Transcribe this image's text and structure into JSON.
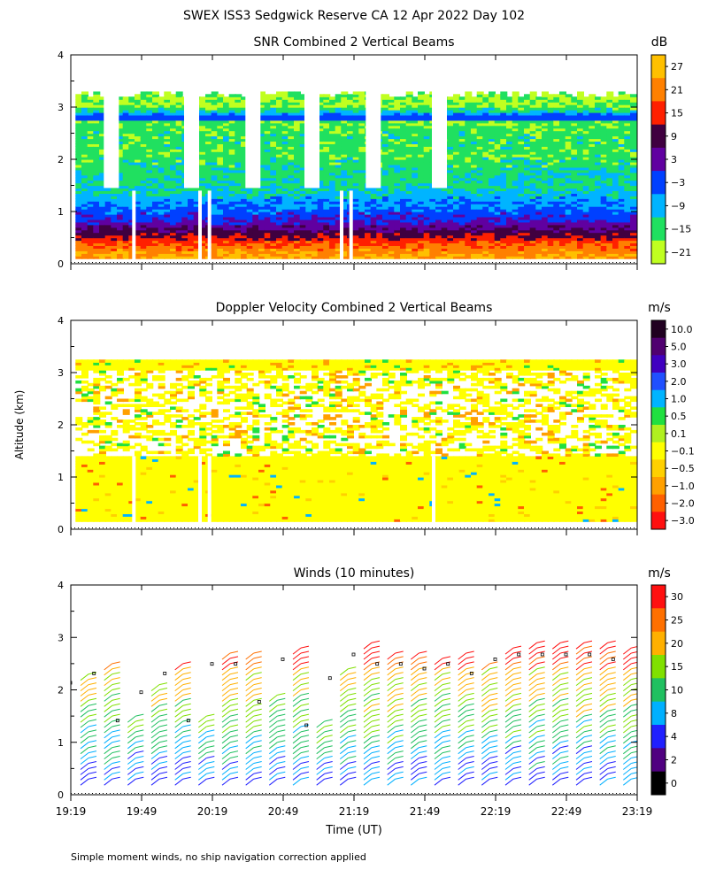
{
  "figure": {
    "title": "SWEX ISS3 Sedgwick Reserve CA  12 Apr 2022 Day 102",
    "ylabel": "Altitude (km)",
    "xlabel": "Time (UT)",
    "footnote": "Simple moment winds, no ship navigation correction applied",
    "time_ticks": [
      "19:19",
      "19:49",
      "20:19",
      "20:49",
      "21:19",
      "21:49",
      "22:19",
      "22:49",
      "23:19"
    ],
    "altitude_ticks": [
      "0",
      "1",
      "2",
      "3",
      "4"
    ]
  },
  "chart_data": [
    {
      "type": "heatmap",
      "title": "SNR Combined 2 Vertical Beams",
      "colorbar_unit": "dB",
      "colorbar_labels": [
        "27",
        "21",
        "15",
        "9",
        "3",
        "−3",
        "−9",
        "−15",
        "−21"
      ],
      "colorbar_colors": [
        "#ffc000",
        "#ff8000",
        "#ff2000",
        "#400040",
        "#6000a0",
        "#0040ff",
        "#00b4ff",
        "#20e060",
        "#c0ff20"
      ],
      "x_range": [
        "19:19",
        "23:19"
      ],
      "ylim": [
        0,
        4
      ],
      "profile_altitude_km": [
        0.15,
        0.3,
        0.45,
        0.6,
        0.8,
        1.0,
        1.25,
        1.5,
        1.8,
        2.1,
        2.4,
        2.7,
        2.8,
        3.0
      ],
      "profile_snr_db": [
        24,
        20,
        14,
        8,
        0,
        -4,
        -9,
        -13,
        -14,
        -16,
        -15,
        -17,
        -3,
        -19
      ]
    },
    {
      "type": "heatmap",
      "title": "Doppler Velocity Combined 2 Vertical Beams",
      "colorbar_unit": "m/s",
      "colorbar_labels": [
        "10.0",
        "5.0",
        "3.0",
        "2.0",
        "1.0",
        "0.5",
        "0.1",
        "−0.1",
        "−0.5",
        "−1.0",
        "−2.0",
        "−3.0"
      ],
      "colorbar_colors": [
        "#200020",
        "#500070",
        "#4000c0",
        "#2050ff",
        "#00b4ff",
        "#20e040",
        "#b0f020",
        "#ffff00",
        "#ffd000",
        "#ffa000",
        "#ff6000",
        "#ff1010"
      ],
      "x_range": [
        "19:19",
        "23:19"
      ],
      "ylim": [
        0,
        4
      ],
      "typical_velocity_ms": -0.05
    },
    {
      "type": "scatter",
      "title": "Winds (10 minutes)",
      "colorbar_unit": "m/s",
      "colorbar_labels": [
        "30",
        "25",
        "20",
        "15",
        "10",
        "8",
        "4",
        "2",
        "0"
      ],
      "colorbar_colors": [
        "#ff1010",
        "#ff7000",
        "#ffb000",
        "#80e000",
        "#20c060",
        "#00b0ff",
        "#2020ff",
        "#500080",
        "#000000"
      ],
      "x_range": [
        "19:19",
        "23:19"
      ],
      "ylim": [
        0,
        4
      ],
      "profile_times": [
        "19:25",
        "19:35",
        "19:45",
        "19:55",
        "20:05",
        "20:15",
        "20:25",
        "20:35",
        "20:45",
        "20:55",
        "21:05",
        "21:15",
        "21:25",
        "21:35",
        "21:45",
        "21:55",
        "22:05",
        "22:15",
        "22:25",
        "22:35",
        "22:45",
        "22:55",
        "23:05",
        "23:15"
      ],
      "profile_tops_km": [
        2.4,
        2.6,
        1.6,
        2.2,
        2.6,
        1.6,
        2.8,
        2.8,
        2.0,
        2.9,
        1.5,
        2.5,
        3.0,
        2.8,
        2.8,
        2.7,
        2.8,
        2.6,
        2.9,
        3.0,
        3.0,
        3.0,
        3.0,
        2.9
      ]
    }
  ]
}
